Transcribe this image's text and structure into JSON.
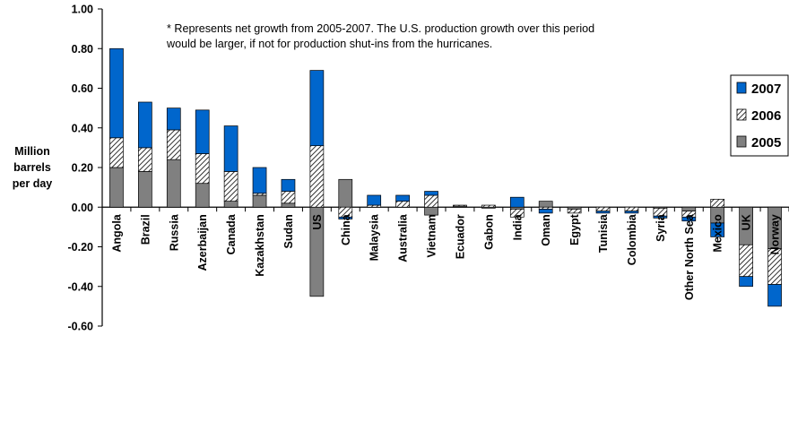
{
  "chart_data": {
    "type": "bar",
    "stacked": true,
    "ylabel_lines": [
      "Million",
      "barrels",
      "per day"
    ],
    "note_lines": [
      "* Represents net growth from 2005-2007.  The U.S. production growth over this period",
      "would be larger, if not for production shut-ins from the hurricanes."
    ],
    "ylim": [
      -0.6,
      1.0
    ],
    "yticks": [
      "1.00",
      "0.80",
      "0.60",
      "0.40",
      "0.20",
      "0.00",
      "-0.20",
      "-0.40",
      "-0.60"
    ],
    "ytick_values": [
      1.0,
      0.8,
      0.6,
      0.4,
      0.2,
      0.0,
      -0.2,
      -0.4,
      -0.6
    ],
    "grid": false,
    "legend_position": "right",
    "categories": [
      "Angola",
      "Brazil",
      "Russia",
      "Azerbaijan",
      "Canada",
      "Kazakhstan",
      "Sudan",
      "US",
      "China",
      "Malaysia",
      "Australia",
      "Vietnam",
      "Ecuador",
      "Gabon",
      "India",
      "Oman",
      "Egypt",
      "Tunisia",
      "Colombia",
      "Syria",
      "Other North Sea",
      "Mexico",
      "UK",
      "Norway"
    ],
    "series": [
      {
        "name": "2005",
        "color": "#808080",
        "pattern": "solid",
        "values": [
          0.2,
          0.18,
          0.24,
          0.12,
          0.03,
          0.06,
          0.02,
          -0.45,
          0.14,
          0.0,
          0.0,
          -0.04,
          0.005,
          -0.005,
          -0.01,
          0.03,
          -0.01,
          0.0,
          0.0,
          -0.005,
          -0.02,
          -0.08,
          -0.19,
          -0.21
        ]
      },
      {
        "name": "2006",
        "color": "#ffffff",
        "pattern": "hatch",
        "values": [
          0.15,
          0.12,
          0.15,
          0.15,
          0.15,
          0.01,
          0.06,
          0.31,
          -0.05,
          0.01,
          0.03,
          0.06,
          0.005,
          0.01,
          -0.04,
          -0.01,
          -0.02,
          -0.02,
          -0.02,
          -0.04,
          -0.03,
          0.04,
          -0.16,
          -0.18
        ]
      },
      {
        "name": "2007",
        "color": "#0066cc",
        "pattern": "solid",
        "values": [
          0.45,
          0.23,
          0.11,
          0.22,
          0.23,
          0.13,
          0.06,
          0.38,
          -0.01,
          0.05,
          0.03,
          0.02,
          0.0,
          0.0,
          0.05,
          -0.02,
          0.0,
          -0.01,
          -0.01,
          -0.01,
          -0.02,
          -0.07,
          -0.05,
          -0.11
        ]
      }
    ]
  }
}
